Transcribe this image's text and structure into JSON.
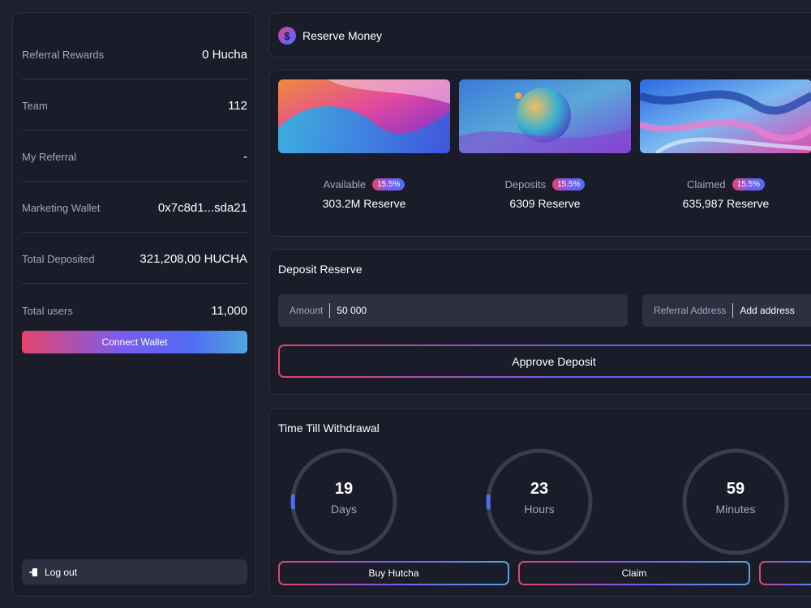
{
  "sidebar": {
    "stats": [
      {
        "label": "Referral Rewards",
        "value": "0 Hucha"
      },
      {
        "label": "Team",
        "value": "112"
      },
      {
        "label": "My Referral",
        "value": "-"
      },
      {
        "label": "Marketing Wallet",
        "value": "0x7c8d1...sda21"
      },
      {
        "label": "Total Deposited",
        "value": "321,208,00 HUCHA"
      },
      {
        "label": "Total users",
        "value": "11,000"
      }
    ],
    "connect_label": "Connect Wallet",
    "logout_label": "Log out"
  },
  "header": {
    "icon": "dollar-coin-icon",
    "coin_glyph": "$",
    "title": "Reserve Money"
  },
  "reserve": {
    "items": [
      {
        "label": "Available",
        "badge": "15.5%",
        "value": "303.2M Reserve"
      },
      {
        "label": "Deposits",
        "badge": "15.5%",
        "value": "6309 Reserve"
      },
      {
        "label": "Claimed",
        "badge": "15.5%",
        "value": "635,987 Reserve"
      }
    ]
  },
  "deposit": {
    "title": "Deposit Reserve",
    "amount_label": "Amount",
    "amount_value": "50 000",
    "referral_label": "Referral Address",
    "referral_value": "Add address",
    "approve_label": "Approve Deposit"
  },
  "timer": {
    "title": "Time Till Withdrawal",
    "units": [
      {
        "value": "19",
        "label": "Days"
      },
      {
        "value": "23",
        "label": "Hours"
      },
      {
        "value": "59",
        "label": "Minutes"
      }
    ],
    "buttons": [
      {
        "label": "Buy Hutcha"
      },
      {
        "label": "Claim"
      },
      {
        "label": ""
      }
    ]
  },
  "colors": {
    "background": "#1e2030",
    "panel": "#1a1c2a",
    "accent_pink": "#e4456a",
    "accent_purple": "#7a5cf0",
    "accent_blue": "#4f6cf2"
  }
}
